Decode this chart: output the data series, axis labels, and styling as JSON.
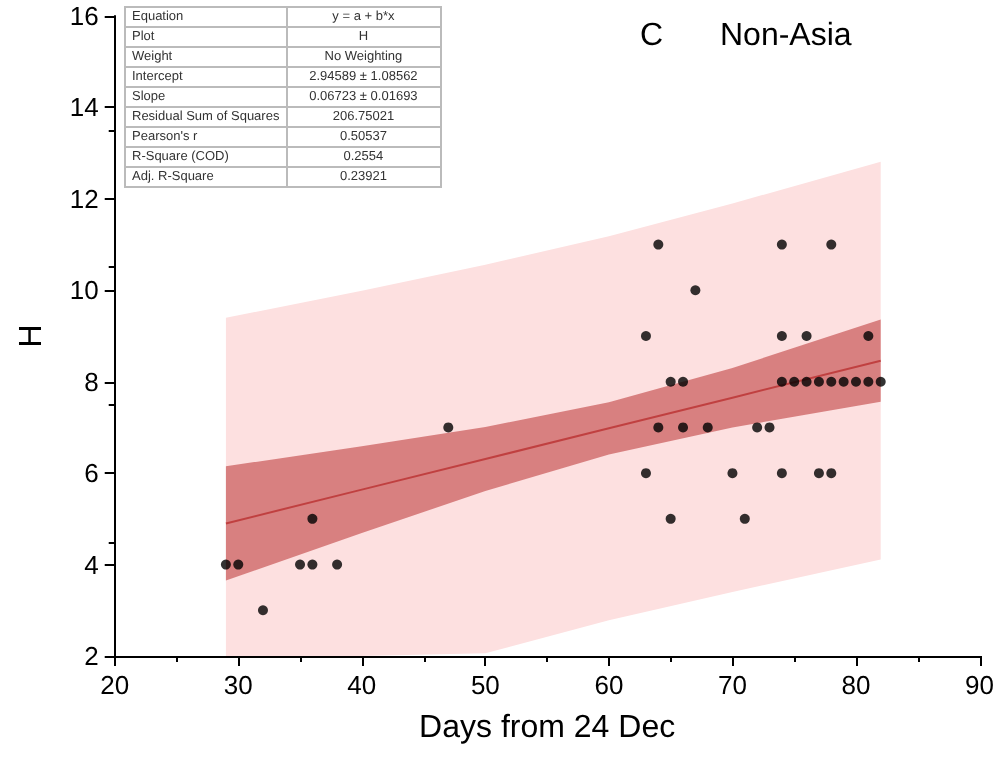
{
  "chart_data": {
    "type": "scatter",
    "title": "Non-Asia",
    "xlabel": "Days from 24 Dec",
    "ylabel": "H",
    "annotations": [
      "C",
      "Equation",
      "y = a + b*x",
      "Plot",
      "H",
      "Weight",
      "No Weighting",
      "Intercept",
      "2.94589 ± 1.08562",
      "Slope",
      "0.06723 ± 0.01693",
      "Residual Sum of Squares",
      "206.75021",
      "Pearson's r",
      "0.50537",
      "R-Square (COD)",
      "0.2554",
      "Adj. R-Square",
      "0.23921"
    ],
    "xlim": [
      20,
      90
    ],
    "xticks": [
      20,
      30,
      40,
      50,
      60,
      70,
      80,
      90
    ],
    "ylim": [
      2,
      16
    ],
    "yticks": [
      2,
      4,
      6,
      8,
      10,
      12,
      14,
      16
    ],
    "grid": false,
    "marker": "circle",
    "series": [
      {
        "type": "line",
        "marker": "none",
        "color": "#fde0e0",
        "x": [
          29,
          40,
          50,
          60,
          70,
          82
        ],
        "values": [
          null,
          null,
          null,
          null,
          null,
          null
        ],
        "lower": [
          2,
          2,
          2.06,
          2.78,
          3.4,
          4.11
        ],
        "upper": [
          9.4,
          9.99,
          10.56,
          11.18,
          11.9,
          12.81
        ]
      },
      {
        "type": "line",
        "marker": "none",
        "color": "#c04040",
        "x": [
          29,
          40,
          50,
          60,
          70,
          82
        ],
        "values": [
          4.9,
          5.64,
          6.31,
          6.98,
          7.65,
          8.46
        ],
        "lower": [
          3.65,
          4.69,
          5.61,
          6.41,
          7.0,
          7.56
        ],
        "upper": [
          6.15,
          6.59,
          7.01,
          7.55,
          8.3,
          9.36
        ]
      },
      {
        "color": "#000000",
        "x": [
          29,
          30,
          32,
          35,
          36,
          36,
          38,
          47,
          64,
          74,
          78,
          67,
          63,
          74,
          76,
          81,
          65,
          66,
          74,
          75,
          76,
          77,
          78,
          79,
          80,
          81,
          82,
          64,
          66,
          68,
          72,
          73,
          63,
          70,
          74,
          77,
          78,
          65,
          71
        ],
        "values": [
          4,
          4,
          3,
          4,
          4,
          5,
          4,
          7,
          11,
          11,
          11,
          10,
          9,
          9,
          9,
          9,
          8,
          8,
          8,
          8,
          8,
          8,
          8,
          8,
          8,
          8,
          8,
          7,
          7,
          7,
          7,
          7,
          6,
          6,
          6,
          6,
          6,
          5,
          5
        ]
      }
    ]
  }
}
